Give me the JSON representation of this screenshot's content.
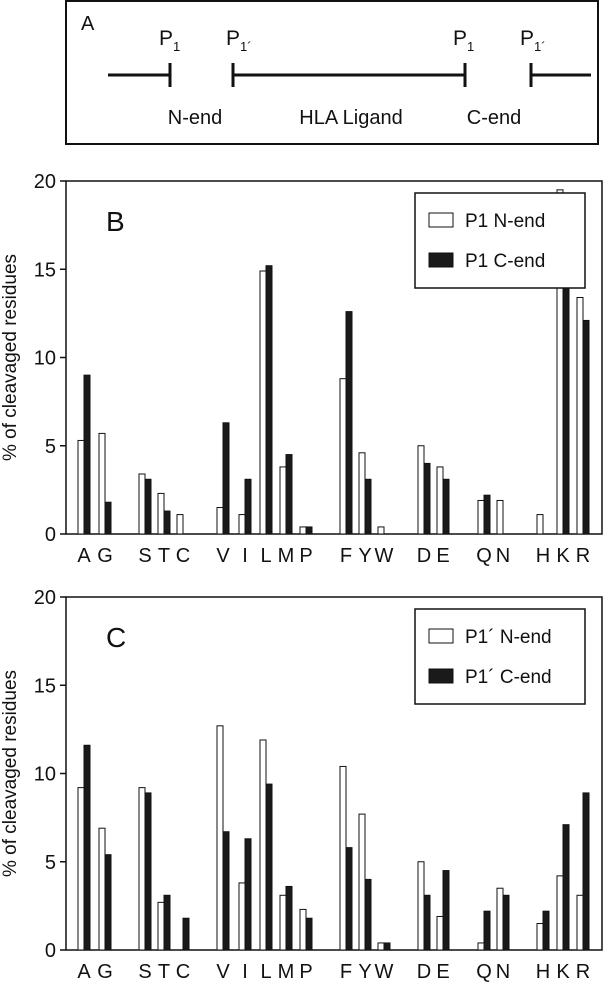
{
  "panel_a": {
    "label": "A",
    "p1_left": "P",
    "p1_left_sub": "1",
    "p1prime_left": "P",
    "p1prime_left_sub": "1´",
    "p1_right": "P",
    "p1_right_sub": "1",
    "p1prime_right": "P",
    "p1prime_right_sub": "1´",
    "n_end": "N-end",
    "ligand": "HLA Ligand",
    "c_end": "C-end"
  },
  "chart_data": [
    {
      "type": "bar",
      "panel_label": "B",
      "ylabel": "% of cleavaged residues",
      "ylim": [
        0,
        20
      ],
      "yticks": [
        "0",
        "5",
        "10",
        "15",
        "20"
      ],
      "categories": [
        "A",
        "G",
        "S",
        "T",
        "C",
        "V",
        "I",
        "L",
        "M",
        "P",
        "F",
        "Y",
        "W",
        "D",
        "E",
        "Q",
        "N",
        "H",
        "K",
        "R"
      ],
      "legend_position": "top-right",
      "series": [
        {
          "name": "P1 N-end",
          "fill": "#ffffff",
          "values": [
            5.3,
            5.7,
            3.4,
            2.3,
            1.1,
            1.5,
            1.1,
            14.9,
            3.8,
            0.4,
            8.8,
            4.6,
            0.4,
            5.0,
            3.8,
            1.9,
            1.9,
            1.1,
            19.5,
            13.4
          ]
        },
        {
          "name": "P1 C-end",
          "fill": "#1a1a1a",
          "values": [
            9.0,
            1.8,
            3.1,
            1.3,
            0,
            6.3,
            3.1,
            15.2,
            4.5,
            0.4,
            12.6,
            3.1,
            0,
            4.0,
            3.1,
            2.2,
            0,
            0,
            17.9,
            12.1
          ]
        }
      ]
    },
    {
      "type": "bar",
      "panel_label": "C",
      "ylabel": "% of cleavaged residues",
      "ylim": [
        0,
        20
      ],
      "yticks": [
        "0",
        "5",
        "10",
        "15",
        "20"
      ],
      "categories": [
        "A",
        "G",
        "S",
        "T",
        "C",
        "V",
        "I",
        "L",
        "M",
        "P",
        "F",
        "Y",
        "W",
        "D",
        "E",
        "Q",
        "N",
        "H",
        "K",
        "R"
      ],
      "legend_position": "top-right",
      "series": [
        {
          "name": "P1´ N-end",
          "fill": "#ffffff",
          "values": [
            9.2,
            6.9,
            9.2,
            2.7,
            0,
            12.7,
            3.8,
            11.9,
            3.1,
            2.3,
            10.4,
            7.7,
            0.4,
            5.0,
            1.9,
            0.4,
            3.5,
            1.5,
            4.2,
            3.1
          ]
        },
        {
          "name": "P1´ C-end",
          "fill": "#1a1a1a",
          "values": [
            11.6,
            5.4,
            8.9,
            3.1,
            1.8,
            6.7,
            6.3,
            9.4,
            3.6,
            1.8,
            5.8,
            4.0,
            0.4,
            3.1,
            4.5,
            2.2,
            3.1,
            2.2,
            7.1,
            8.9
          ]
        }
      ]
    }
  ]
}
